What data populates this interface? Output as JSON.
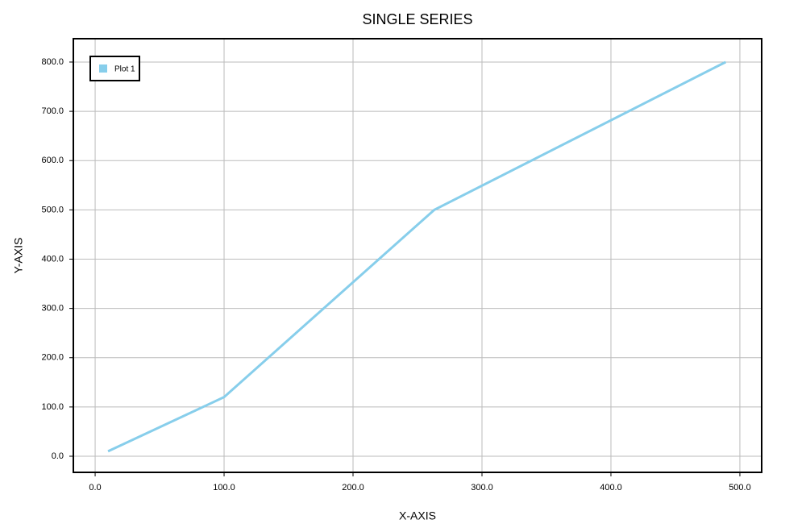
{
  "chart_data": {
    "type": "line",
    "title": "SINGLE SERIES",
    "xlabel": "X-AXIS",
    "ylabel": "Y-AXIS",
    "x": [
      10,
      100,
      263,
      489
    ],
    "series": [
      {
        "name": "Plot 1",
        "color": "#87ceeb",
        "values": [
          10,
          120,
          500,
          800
        ]
      }
    ],
    "xlim": [
      -16.9,
      516.9
    ],
    "ylim": [
      -32.7,
      847.4
    ],
    "xticks": [
      {
        "value": 0,
        "label": "0.0"
      },
      {
        "value": 100,
        "label": "100.0"
      },
      {
        "value": 200,
        "label": "200.0"
      },
      {
        "value": 300,
        "label": "300.0"
      },
      {
        "value": 400,
        "label": "400.0"
      },
      {
        "value": 500,
        "label": "500.0"
      }
    ],
    "yticks": [
      {
        "value": 0,
        "label": "0.0"
      },
      {
        "value": 100,
        "label": "100.0"
      },
      {
        "value": 200,
        "label": "200.0"
      },
      {
        "value": 300,
        "label": "300.0"
      },
      {
        "value": 400,
        "label": "400.0"
      },
      {
        "value": 500,
        "label": "500.0"
      },
      {
        "value": 600,
        "label": "600.0"
      },
      {
        "value": 700,
        "label": "700.0"
      },
      {
        "value": 800,
        "label": "800.0"
      }
    ],
    "grid": true,
    "legend": "upper left"
  }
}
